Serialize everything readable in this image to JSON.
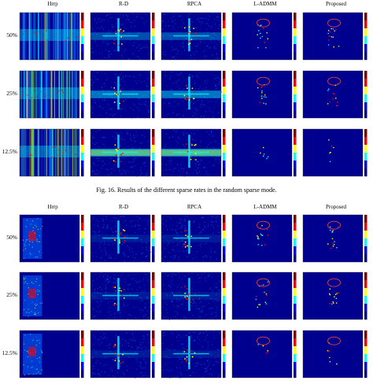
{
  "columns": [
    "Hrrp",
    "R-D",
    "RPCA",
    "L-ADMM",
    "Proposed"
  ],
  "rows": [
    "50%",
    "25%",
    "12.5%"
  ],
  "figure_top": {
    "caption": "Fig. 16.    Results of the different sparse rates in the random sparse mode."
  },
  "figure_bottom": {},
  "colors": {
    "jet_dark": "#00008f",
    "jet_blue": "#0060ff",
    "jet_cyan": "#00ffff",
    "jet_yellow": "#ffff00",
    "jet_red": "#ff0000",
    "ellipse": "#e04040"
  }
}
